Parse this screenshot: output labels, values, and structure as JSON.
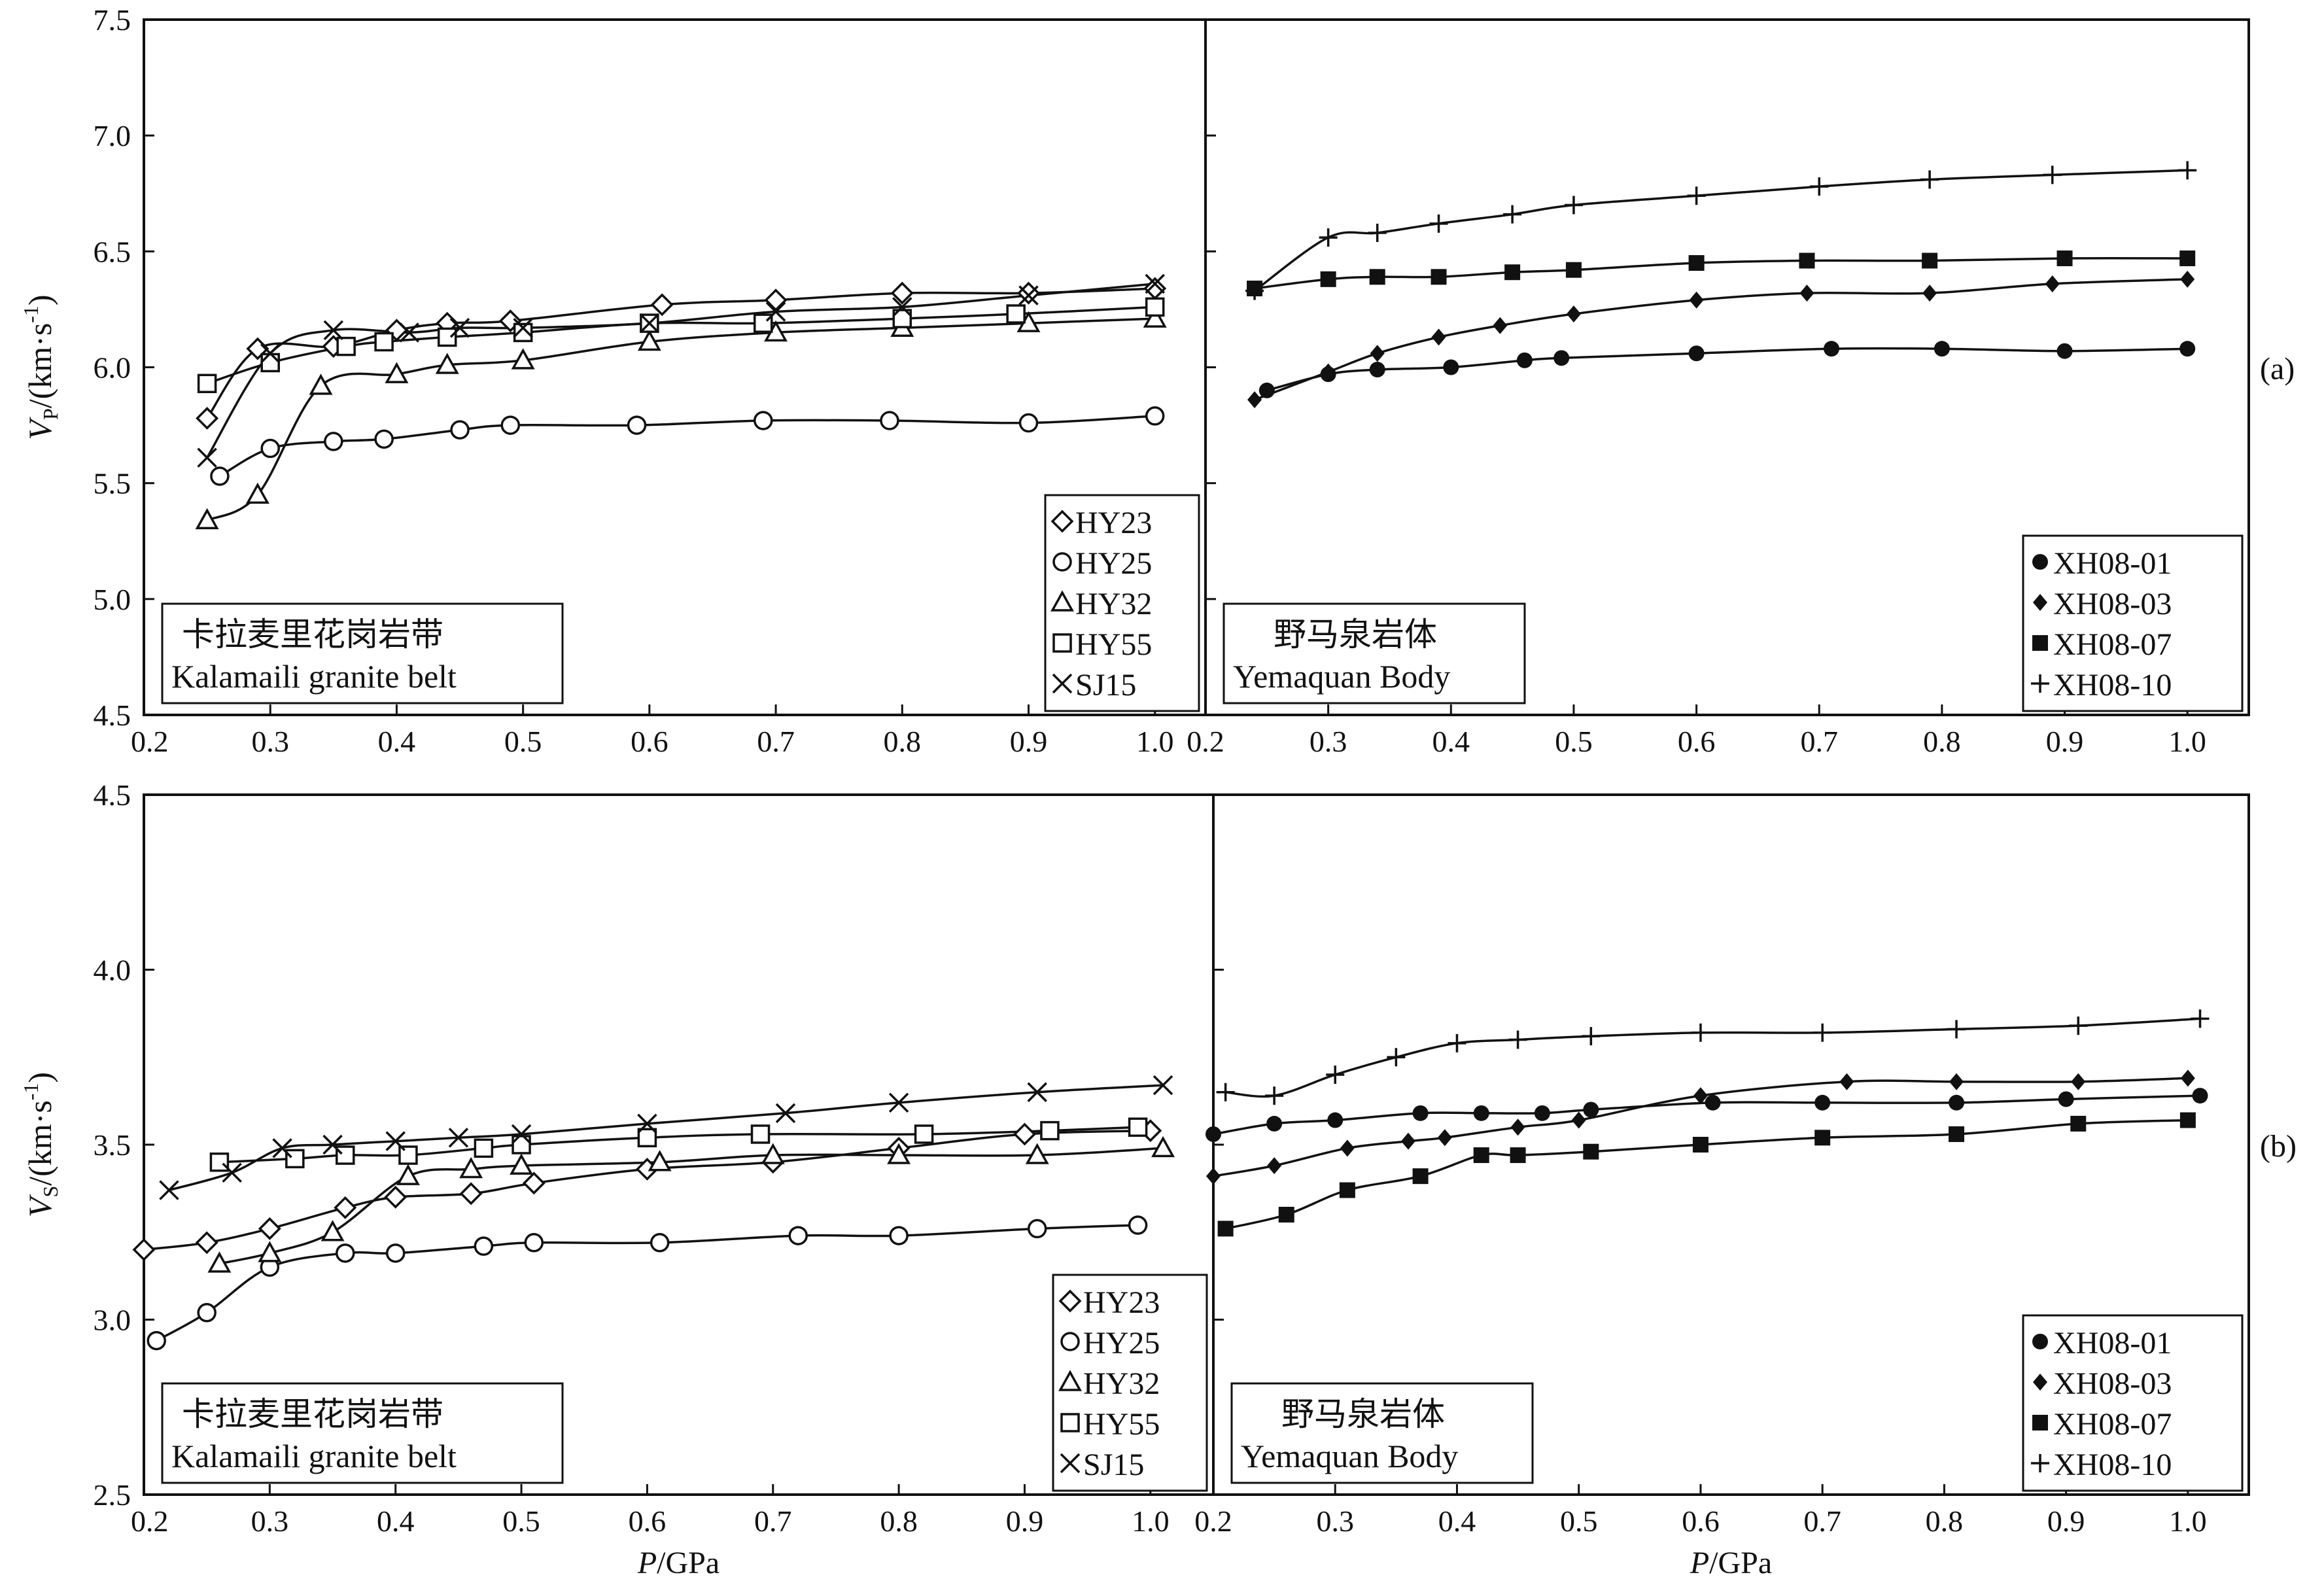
{
  "chart_data": [
    {
      "panel_id": "a",
      "panel_label": "(a)",
      "y_label_base": "V",
      "y_label_sub": "P",
      "y_label_unit": "/(km·s",
      "y_label_exp": "-1",
      "y_label_close": ")",
      "ylim": [
        4.5,
        7.5
      ],
      "yticks": [
        "4.5",
        "5.0",
        "5.5",
        "6.0",
        "6.5",
        "7.0",
        "7.5"
      ],
      "subplots": [
        {
          "id": "left",
          "xlim": [
            0.2,
            1.04
          ],
          "xticks": [
            "0.2",
            "0.3",
            "0.4",
            "0.5",
            "0.6",
            "0.7",
            "0.8",
            "0.9",
            "1.0"
          ],
          "label_cn": "卡拉麦里花岗岩带",
          "label_en": "Kalamaili granite belt",
          "type": "line",
          "series": [
            {
              "name": "HY23",
              "marker": "diamond",
              "x": [
                0.25,
                0.29,
                0.35,
                0.4,
                0.44,
                0.49,
                0.61,
                0.7,
                0.8,
                0.9,
                1.0
              ],
              "y": [
                5.78,
                6.08,
                6.09,
                6.16,
                6.19,
                6.2,
                6.27,
                6.29,
                6.32,
                6.32,
                6.34
              ]
            },
            {
              "name": "HY25",
              "marker": "circle",
              "x": [
                0.26,
                0.3,
                0.35,
                0.39,
                0.45,
                0.49,
                0.59,
                0.69,
                0.79,
                0.9,
                1.0
              ],
              "y": [
                5.53,
                5.65,
                5.68,
                5.69,
                5.73,
                5.75,
                5.75,
                5.77,
                5.77,
                5.76,
                5.79
              ]
            },
            {
              "name": "HY32",
              "marker": "triangle",
              "x": [
                0.25,
                0.29,
                0.34,
                0.4,
                0.44,
                0.5,
                0.6,
                0.7,
                0.8,
                0.9,
                1.0
              ],
              "y": [
                5.34,
                5.45,
                5.92,
                5.97,
                6.01,
                6.03,
                6.11,
                6.15,
                6.17,
                6.19,
                6.21
              ]
            },
            {
              "name": "HY55",
              "marker": "square",
              "x": [
                0.25,
                0.3,
                0.36,
                0.39,
                0.44,
                0.5,
                0.6,
                0.69,
                0.8,
                0.89,
                1.0
              ],
              "y": [
                5.93,
                6.02,
                6.09,
                6.11,
                6.13,
                6.15,
                6.19,
                6.19,
                6.21,
                6.23,
                6.26
              ]
            },
            {
              "name": "SJ15",
              "marker": "x",
              "x": [
                0.25,
                0.3,
                0.35,
                0.41,
                0.45,
                0.5,
                0.6,
                0.7,
                0.8,
                0.9,
                1.0
              ],
              "y": [
                5.61,
                6.06,
                6.16,
                6.15,
                6.17,
                6.17,
                6.19,
                6.24,
                6.26,
                6.31,
                6.36
              ]
            }
          ]
        },
        {
          "id": "right",
          "xlim": [
            0.2,
            1.05
          ],
          "xticks": [
            "0.2",
            "0.3",
            "0.4",
            "0.5",
            "0.6",
            "0.7",
            "0.8",
            "0.9",
            "1.0"
          ],
          "label_cn": "野马泉岩体",
          "label_en": "Yemaquan Body",
          "type": "line",
          "series": [
            {
              "name": "XH08-01",
              "marker": "filled-circle",
              "x": [
                0.25,
                0.3,
                0.34,
                0.4,
                0.46,
                0.49,
                0.6,
                0.71,
                0.8,
                0.9,
                1.0
              ],
              "y": [
                5.9,
                5.97,
                5.99,
                6.0,
                6.03,
                6.04,
                6.06,
                6.08,
                6.08,
                6.07,
                6.08
              ]
            },
            {
              "name": "XH08-03",
              "marker": "filled-diamond",
              "x": [
                0.24,
                0.3,
                0.34,
                0.39,
                0.44,
                0.5,
                0.6,
                0.69,
                0.79,
                0.89,
                1.0
              ],
              "y": [
                5.86,
                5.98,
                6.06,
                6.13,
                6.18,
                6.23,
                6.29,
                6.32,
                6.32,
                6.36,
                6.38
              ]
            },
            {
              "name": "XH08-07",
              "marker": "filled-square",
              "x": [
                0.24,
                0.3,
                0.34,
                0.39,
                0.45,
                0.5,
                0.6,
                0.69,
                0.79,
                0.9,
                1.0
              ],
              "y": [
                6.34,
                6.38,
                6.39,
                6.39,
                6.41,
                6.42,
                6.45,
                6.46,
                6.46,
                6.47,
                6.47
              ]
            },
            {
              "name": "XH08-10",
              "marker": "plus",
              "x": [
                0.24,
                0.3,
                0.34,
                0.39,
                0.45,
                0.5,
                0.6,
                0.7,
                0.79,
                0.89,
                1.0
              ],
              "y": [
                6.33,
                6.56,
                6.58,
                6.62,
                6.66,
                6.7,
                6.74,
                6.78,
                6.81,
                6.83,
                6.85
              ]
            }
          ]
        }
      ]
    },
    {
      "panel_id": "b",
      "panel_label": "(b)",
      "y_label_base": "V",
      "y_label_sub": "S",
      "y_label_unit": "/(km·s",
      "y_label_exp": "-1",
      "y_label_close": ")",
      "ylim": [
        2.5,
        4.5
      ],
      "yticks": [
        "2.5",
        "3.0",
        "3.5",
        "4.0",
        "4.5"
      ],
      "x_label_italic": "P",
      "x_label_rest": "/GPa",
      "subplots": [
        {
          "id": "left",
          "xlim": [
            0.2,
            1.05
          ],
          "xticks": [
            "0.2",
            "0.3",
            "0.4",
            "0.5",
            "0.6",
            "0.7",
            "0.8",
            "0.9",
            "1.0"
          ],
          "label_cn": "卡拉麦里花岗岩带",
          "label_en": "Kalamaili granite belt",
          "type": "line",
          "series": [
            {
              "name": "HY23",
              "marker": "diamond",
              "x": [
                0.2,
                0.25,
                0.3,
                0.36,
                0.4,
                0.46,
                0.51,
                0.6,
                0.7,
                0.8,
                0.9,
                1.0
              ],
              "y": [
                3.2,
                3.22,
                3.26,
                3.32,
                3.35,
                3.36,
                3.39,
                3.43,
                3.45,
                3.49,
                3.53,
                3.54
              ]
            },
            {
              "name": "HY25",
              "marker": "circle",
              "x": [
                0.21,
                0.25,
                0.3,
                0.36,
                0.4,
                0.47,
                0.51,
                0.61,
                0.72,
                0.8,
                0.91,
                0.99
              ],
              "y": [
                2.94,
                3.02,
                3.15,
                3.19,
                3.19,
                3.21,
                3.22,
                3.22,
                3.24,
                3.24,
                3.26,
                3.27
              ]
            },
            {
              "name": "HY32",
              "marker": "triangle",
              "x": [
                0.26,
                0.3,
                0.35,
                0.41,
                0.46,
                0.5,
                0.61,
                0.7,
                0.8,
                0.91,
                1.01
              ],
              "y": [
                3.16,
                3.19,
                3.25,
                3.41,
                3.43,
                3.44,
                3.45,
                3.47,
                3.47,
                3.47,
                3.49
              ]
            },
            {
              "name": "HY55",
              "marker": "square",
              "x": [
                0.26,
                0.32,
                0.36,
                0.41,
                0.47,
                0.5,
                0.6,
                0.69,
                0.82,
                0.92,
                0.99
              ],
              "y": [
                3.45,
                3.46,
                3.47,
                3.47,
                3.49,
                3.5,
                3.52,
                3.53,
                3.53,
                3.54,
                3.55
              ]
            },
            {
              "name": "SJ15",
              "marker": "x",
              "x": [
                0.22,
                0.27,
                0.31,
                0.35,
                0.4,
                0.45,
                0.5,
                0.6,
                0.71,
                0.8,
                0.91,
                1.01
              ],
              "y": [
                3.37,
                3.42,
                3.49,
                3.5,
                3.51,
                3.52,
                3.53,
                3.56,
                3.59,
                3.62,
                3.65,
                3.67
              ]
            }
          ]
        },
        {
          "id": "right",
          "xlim": [
            0.2,
            1.05
          ],
          "xticks": [
            "0.2",
            "0.3",
            "0.4",
            "0.5",
            "0.6",
            "0.7",
            "0.8",
            "0.9",
            "1.0"
          ],
          "label_cn": "野马泉岩体",
          "label_en": "Yemaquan Body",
          "type": "line",
          "series": [
            {
              "name": "XH08-01",
              "marker": "filled-circle",
              "x": [
                0.2,
                0.25,
                0.3,
                0.37,
                0.42,
                0.47,
                0.51,
                0.61,
                0.7,
                0.81,
                0.9,
                1.01
              ],
              "y": [
                3.53,
                3.56,
                3.57,
                3.59,
                3.59,
                3.59,
                3.6,
                3.62,
                3.62,
                3.62,
                3.63,
                3.64
              ]
            },
            {
              "name": "XH08-03",
              "marker": "filled-diamond",
              "x": [
                0.2,
                0.25,
                0.31,
                0.36,
                0.39,
                0.45,
                0.5,
                0.6,
                0.72,
                0.81,
                0.91,
                1.0
              ],
              "y": [
                3.41,
                3.44,
                3.49,
                3.51,
                3.52,
                3.55,
                3.57,
                3.64,
                3.68,
                3.68,
                3.68,
                3.69
              ]
            },
            {
              "name": "XH08-07",
              "marker": "filled-square",
              "x": [
                0.21,
                0.26,
                0.31,
                0.37,
                0.42,
                0.45,
                0.51,
                0.6,
                0.7,
                0.81,
                0.91,
                1.0
              ],
              "y": [
                3.26,
                3.3,
                3.37,
                3.41,
                3.47,
                3.47,
                3.48,
                3.5,
                3.52,
                3.53,
                3.56,
                3.57
              ]
            },
            {
              "name": "XH08-10",
              "marker": "plus",
              "x": [
                0.21,
                0.25,
                0.3,
                0.35,
                0.4,
                0.45,
                0.51,
                0.6,
                0.7,
                0.81,
                0.91,
                1.01
              ],
              "y": [
                3.65,
                3.64,
                3.7,
                3.75,
                3.79,
                3.8,
                3.81,
                3.82,
                3.82,
                3.83,
                3.84,
                3.86
              ]
            }
          ]
        }
      ]
    }
  ]
}
